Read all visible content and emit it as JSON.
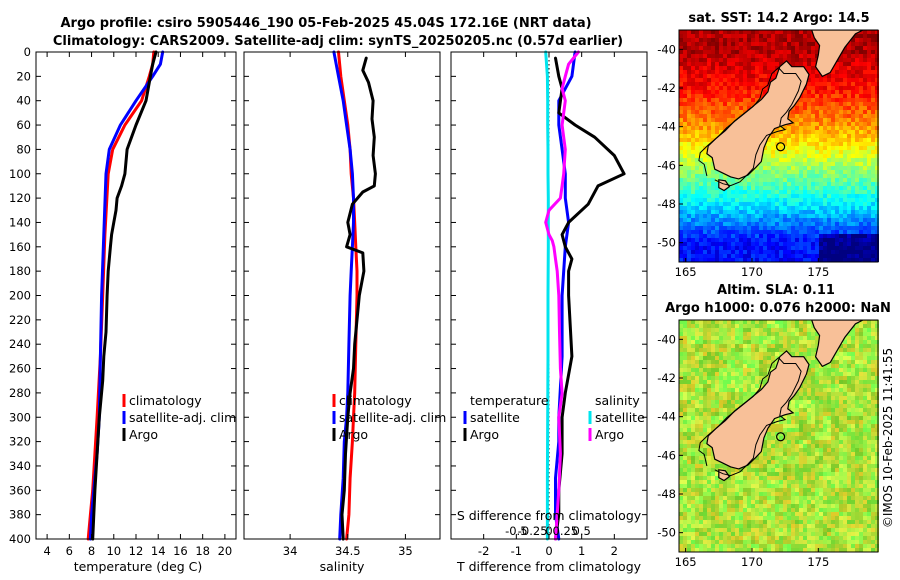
{
  "title": {
    "line1": "Argo profile: csiro 5905446_190 05-Feb-2025 45.04S 172.16E (NRT data)",
    "line2": "Climatology: CARS2009. Satellite-adj clim: synTS_20250205.nc (0.57d earlier)"
  },
  "timestamp": "©IMOS 10-Feb-2025 11:41:55",
  "colors": {
    "climatology": "#ff0000",
    "satellite": "#0000ff",
    "argo": "#000000",
    "sal_satellite": "#00e5ee",
    "sal_argo": "#ff00ff",
    "land": "#f8c098"
  },
  "chart_data": [
    {
      "id": "temperature",
      "type": "line",
      "xlabel": "temperature (deg C)",
      "ylabel": "",
      "xlim": [
        3,
        21
      ],
      "ylim": [
        400,
        0
      ],
      "xticks": [
        4,
        6,
        8,
        10,
        12,
        14,
        16,
        18,
        20
      ],
      "yticks": [
        0,
        20,
        40,
        60,
        80,
        100,
        120,
        140,
        160,
        180,
        200,
        220,
        240,
        260,
        280,
        300,
        320,
        340,
        360,
        380,
        400
      ],
      "legend": [
        "climatology",
        "satellite-adj. clim",
        "Argo"
      ],
      "series": [
        {
          "name": "climatology",
          "color": "#ff0000",
          "x": [
            13.6,
            13.5,
            13.2,
            12.5,
            11.0,
            9.9,
            9.5,
            9.2,
            9.0,
            8.8,
            8.5,
            8.3,
            8.1,
            7.9,
            7.7
          ],
          "y": [
            0,
            10,
            20,
            40,
            60,
            80,
            100,
            150,
            200,
            250,
            300,
            330,
            360,
            380,
            400
          ]
        },
        {
          "name": "satellite-adj. clim",
          "color": "#0000ff",
          "x": [
            14.4,
            14.2,
            13.5,
            12.0,
            10.6,
            9.6,
            9.3,
            9.1,
            8.9,
            8.8,
            8.7,
            8.5,
            8.2,
            8.0,
            7.9
          ],
          "y": [
            0,
            10,
            20,
            40,
            60,
            80,
            100,
            150,
            200,
            250,
            300,
            330,
            360,
            380,
            400
          ]
        },
        {
          "name": "Argo",
          "color": "#000000",
          "x": [
            13.8,
            13.5,
            13.3,
            12.9,
            12.0,
            11.2,
            11.0,
            10.7,
            10.3,
            10.2,
            10.0,
            9.8,
            9.7,
            9.6,
            9.5,
            9.4,
            9.3,
            9.1,
            9.0,
            8.7,
            8.5,
            8.3,
            8.2,
            8.1
          ],
          "y": [
            0,
            10,
            20,
            40,
            60,
            80,
            100,
            110,
            120,
            130,
            140,
            150,
            160,
            170,
            180,
            200,
            230,
            250,
            270,
            300,
            330,
            360,
            380,
            400
          ]
        }
      ]
    },
    {
      "id": "salinity",
      "type": "line",
      "xlabel": "salinity",
      "ylabel": "",
      "xlim": [
        33.6,
        35.3
      ],
      "ylim": [
        400,
        0
      ],
      "xticks": [
        34,
        34.5,
        35
      ],
      "legend": [
        "climatology",
        "satellite-adj. clim",
        "Argo"
      ],
      "series": [
        {
          "name": "climatology",
          "color": "#ff0000",
          "x": [
            34.42,
            34.44,
            34.47,
            34.5,
            34.52,
            34.53,
            34.55,
            34.56,
            34.57,
            34.58,
            34.58,
            34.57,
            34.56,
            34.55,
            34.54,
            34.52,
            34.51,
            34.49
          ],
          "y": [
            0,
            20,
            40,
            60,
            80,
            100,
            120,
            140,
            160,
            180,
            200,
            240,
            280,
            300,
            320,
            350,
            380,
            400
          ]
        },
        {
          "name": "satellite-adj. clim",
          "color": "#0000ff",
          "x": [
            34.38,
            34.42,
            34.46,
            34.49,
            34.52,
            34.54,
            34.55,
            34.55,
            34.54,
            34.53,
            34.52,
            34.51,
            34.5,
            34.49,
            34.47,
            34.46,
            34.44,
            34.43
          ],
          "y": [
            0,
            20,
            40,
            60,
            80,
            100,
            120,
            140,
            160,
            180,
            200,
            240,
            280,
            300,
            320,
            350,
            380,
            400
          ]
        },
        {
          "name": "Argo",
          "color": "#000000",
          "x": [
            34.66,
            34.63,
            34.68,
            34.72,
            34.71,
            34.73,
            34.72,
            34.74,
            34.73,
            34.63,
            34.54,
            34.5,
            34.52,
            34.49,
            34.63,
            34.64,
            34.6,
            34.58,
            34.56,
            34.55,
            34.52,
            34.5,
            34.48,
            34.47,
            34.45,
            34.46
          ],
          "y": [
            5,
            15,
            25,
            40,
            55,
            70,
            85,
            100,
            110,
            115,
            125,
            140,
            150,
            160,
            165,
            180,
            200,
            220,
            240,
            260,
            280,
            300,
            330,
            360,
            380,
            400
          ]
        }
      ]
    },
    {
      "id": "difference",
      "type": "line",
      "xlabel": "T difference from climatology",
      "xlabel2": "S difference from climatology",
      "xlim": [
        -3,
        3
      ],
      "ylim": [
        400,
        0
      ],
      "xticks": [
        -2,
        -1,
        0,
        1,
        2
      ],
      "sticks": [
        "-0.5",
        "-0.25",
        "0",
        "0.25",
        "0.5"
      ],
      "legend_t_title": "temperature",
      "legend_s_title": "salinity",
      "legend": [
        "satellite",
        "Argo",
        "satellite",
        "Argo"
      ],
      "series": [
        {
          "name": "T satellite",
          "color": "#0000ff",
          "x": [
            0.8,
            0.7,
            0.3,
            0.3,
            0.4,
            0.5,
            0.5,
            0.6,
            0.5,
            0.4,
            0.4,
            0.3,
            0.3,
            0.2,
            0.2,
            0.3
          ],
          "y": [
            0,
            20,
            40,
            60,
            80,
            100,
            120,
            140,
            160,
            200,
            250,
            300,
            320,
            350,
            380,
            400
          ]
        },
        {
          "name": "T Argo",
          "color": "#000000",
          "x": [
            0.2,
            0.3,
            0.4,
            0.3,
            0.8,
            1.4,
            2.0,
            2.3,
            1.5,
            1.2,
            0.6,
            0.4,
            0.5,
            0.7,
            0.6,
            0.6,
            0.7,
            0.5,
            0.4,
            0.4,
            0.3,
            0.3,
            0.2
          ],
          "y": [
            5,
            20,
            30,
            50,
            60,
            70,
            85,
            100,
            110,
            125,
            140,
            150,
            160,
            170,
            180,
            200,
            250,
            280,
            300,
            330,
            360,
            380,
            400
          ]
        },
        {
          "name": "S satellite",
          "color": "#00e5ee",
          "x": [
            -0.1,
            -0.05,
            -0.04,
            -0.04,
            -0.03,
            -0.03,
            -0.02,
            -0.02,
            -0.02,
            -0.03,
            -0.03,
            -0.04,
            -0.05,
            -0.05
          ],
          "y": [
            0,
            20,
            40,
            60,
            80,
            100,
            120,
            140,
            160,
            200,
            250,
            300,
            350,
            400
          ]
        },
        {
          "name": "S Argo",
          "color": "#ff00ff",
          "x": [
            0.9,
            0.6,
            0.5,
            0.4,
            0.5,
            0.4,
            0.5,
            0.45,
            0.4,
            0.35,
            0.0,
            -0.1,
            0.0,
            0.1,
            0.15,
            0.2,
            0.25,
            0.3,
            0.32,
            0.35,
            0.4,
            0.3,
            0.35,
            0.3,
            0.25,
            0.2
          ],
          "y": [
            0,
            10,
            20,
            30,
            40,
            60,
            80,
            100,
            110,
            120,
            130,
            140,
            150,
            155,
            160,
            170,
            180,
            200,
            230,
            260,
            280,
            300,
            330,
            360,
            380,
            400
          ]
        }
      ]
    },
    {
      "id": "sst_map",
      "type": "heatmap",
      "title": "sat. SST: 14.2 Argo: 14.5",
      "xlim": [
        164.5,
        179.5
      ],
      "ylim": [
        -51,
        -39
      ],
      "xticks": [
        165,
        170,
        175
      ],
      "yticks": [
        -40,
        -42,
        -44,
        -46,
        -48,
        -50
      ],
      "argo_position": {
        "lon": 172.16,
        "lat": -45.04
      },
      "sst_latitude_bands": [
        {
          "lat": -40,
          "value": 18.5
        },
        {
          "lat": -42,
          "value": 17.5
        },
        {
          "lat": -44,
          "value": 16.0
        },
        {
          "lat": -46,
          "value": 14.0
        },
        {
          "lat": -48,
          "value": 12.0
        },
        {
          "lat": -50,
          "value": 9.5
        }
      ]
    },
    {
      "id": "sla_map",
      "type": "heatmap",
      "title": "Altim. SLA: 0.11",
      "subtitle": "Argo h1000: 0.076 h2000: NaN",
      "xlim": [
        164.5,
        179.5
      ],
      "ylim": [
        -51,
        -39
      ],
      "xticks": [
        165,
        170,
        175
      ],
      "yticks": [
        -40,
        -42,
        -44,
        -46,
        -48,
        -50
      ],
      "argo_position": {
        "lon": 172.16,
        "lat": -45.04
      },
      "sla_typical": 0.11
    }
  ]
}
